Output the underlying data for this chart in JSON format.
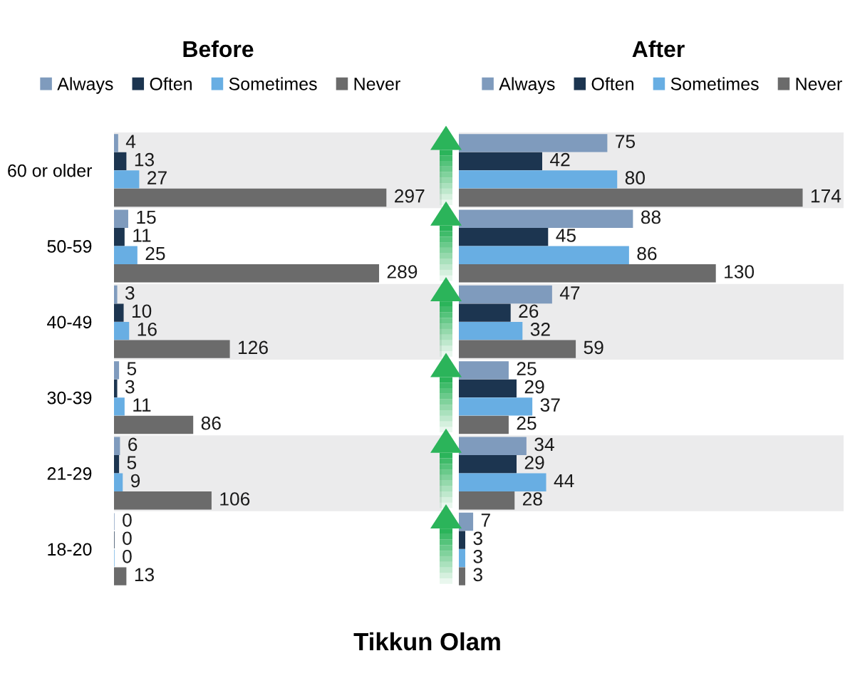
{
  "chart_data": [
    {
      "type": "bar",
      "orientation": "horizontal",
      "title": "Before",
      "categories": [
        "60 or older",
        "50-59",
        "40-49",
        "30-39",
        "21-29",
        "18-20"
      ],
      "series": [
        {
          "name": "Always",
          "color": "#7f9bbd",
          "values": [
            4,
            15,
            3,
            5,
            6,
            0
          ]
        },
        {
          "name": "Often",
          "color": "#1c3550",
          "values": [
            13,
            11,
            10,
            3,
            5,
            0
          ]
        },
        {
          "name": "Sometimes",
          "color": "#68aee3",
          "values": [
            27,
            25,
            16,
            11,
            9,
            0
          ]
        },
        {
          "name": "Never",
          "color": "#6b6b6b",
          "values": [
            297,
            289,
            126,
            86,
            106,
            13
          ]
        }
      ],
      "xlim": [
        0,
        358
      ],
      "data_labels": true,
      "legend": "top",
      "tick_labels": "y",
      "bands": [
        {
          "axis": "y",
          "from": "60 or older",
          "to": "60 or older",
          "color": "#ebebec"
        },
        {
          "axis": "y",
          "from": "40-49",
          "to": "40-49",
          "color": "#ebebec"
        },
        {
          "axis": "y",
          "from": "21-29",
          "to": "21-29",
          "color": "#ebebec"
        }
      ],
      "annotations": [
        "Tikkun Olam"
      ]
    },
    {
      "type": "bar",
      "orientation": "horizontal",
      "title": "After",
      "categories": [
        "60 or older",
        "50-59",
        "40-49",
        "30-39",
        "21-29",
        "18-20"
      ],
      "series": [
        {
          "name": "Always",
          "color": "#7f9bbd",
          "values": [
            75,
            88,
            47,
            25,
            34,
            7
          ]
        },
        {
          "name": "Often",
          "color": "#1c3550",
          "values": [
            42,
            45,
            26,
            29,
            29,
            3
          ]
        },
        {
          "name": "Sometimes",
          "color": "#68aee3",
          "values": [
            80,
            86,
            32,
            37,
            44,
            3
          ]
        },
        {
          "name": "Never",
          "color": "#6b6b6b",
          "values": [
            174,
            130,
            59,
            25,
            28,
            3
          ]
        }
      ],
      "xlim": [
        0,
        195
      ],
      "data_labels": true,
      "legend": "top",
      "tick_labels": false,
      "bands": [
        {
          "axis": "y",
          "from": "60 or older",
          "to": "60 or older",
          "color": "#ebebec"
        },
        {
          "axis": "y",
          "from": "40-49",
          "to": "40-49",
          "color": "#ebebec"
        },
        {
          "axis": "y",
          "from": "21-29",
          "to": "21-29",
          "color": "#ebebec"
        }
      ]
    }
  ]
}
